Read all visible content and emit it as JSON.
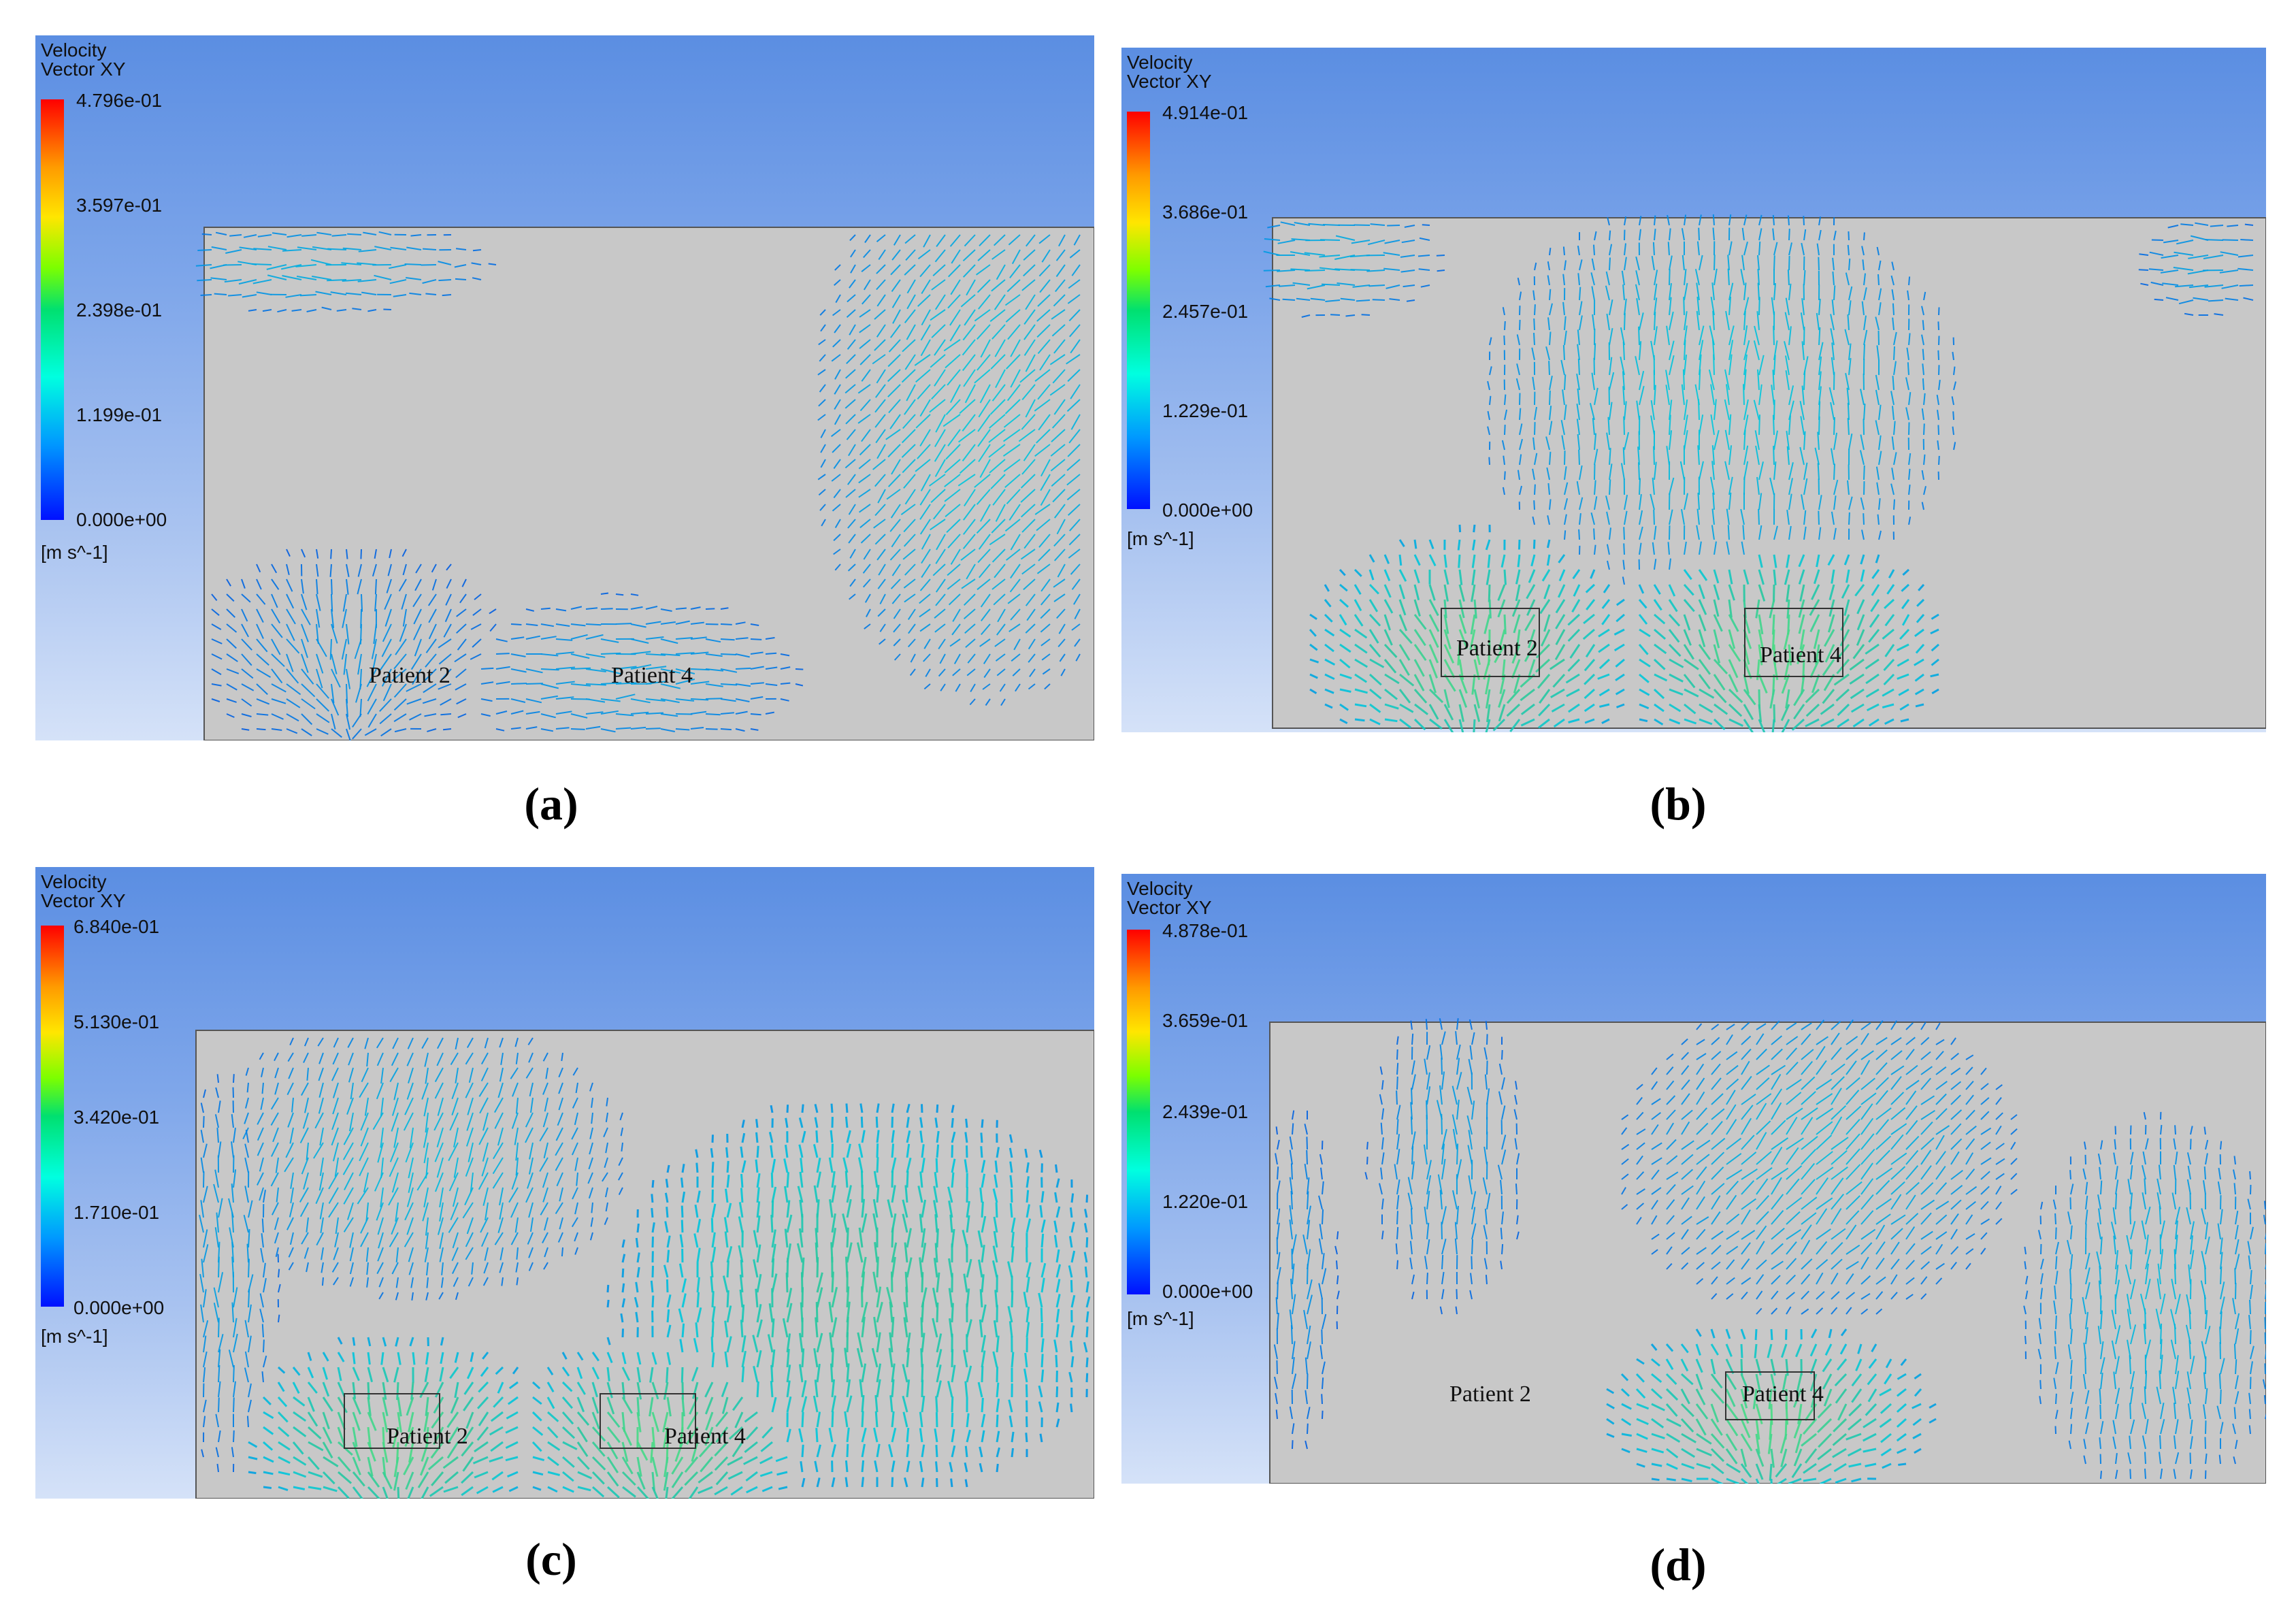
{
  "panels": [
    {
      "id": "a",
      "legend": {
        "title_line1": "Velocity",
        "title_line2": "Vector XY",
        "ticks": [
          "4.796e-01",
          "3.597e-01",
          "2.398e-01",
          "1.199e-01",
          "0.000e+00"
        ],
        "unit": "[m s^-1]"
      },
      "patient_labels": [
        "Patient 2",
        "Patient 4"
      ],
      "caption": "(a)"
    },
    {
      "id": "b",
      "legend": {
        "title_line1": "Velocity",
        "title_line2": "Vector XY",
        "ticks": [
          "4.914e-01",
          "3.686e-01",
          "2.457e-01",
          "1.229e-01",
          "0.000e+00"
        ],
        "unit": "[m s^-1]"
      },
      "patient_labels": [
        "Patient 2",
        "Patient 4"
      ],
      "caption": "(b)"
    },
    {
      "id": "c",
      "legend": {
        "title_line1": "Velocity",
        "title_line2": "Vector XY",
        "ticks": [
          "6.840e-01",
          "5.130e-01",
          "3.420e-01",
          "1.710e-01",
          "0.000e+00"
        ],
        "unit": "[m s^-1]"
      },
      "patient_labels": [
        "Patient 2",
        "Patient 4"
      ],
      "caption": "(c)"
    },
    {
      "id": "d",
      "legend": {
        "title_line1": "Velocity",
        "title_line2": "Vector XY",
        "ticks": [
          "4.878e-01",
          "3.659e-01",
          "2.439e-01",
          "1.220e-01",
          "0.000e+00"
        ],
        "unit": "[m s^-1]"
      },
      "patient_labels": [
        "Patient 2",
        "Patient 4"
      ],
      "caption": "(d)"
    }
  ]
}
